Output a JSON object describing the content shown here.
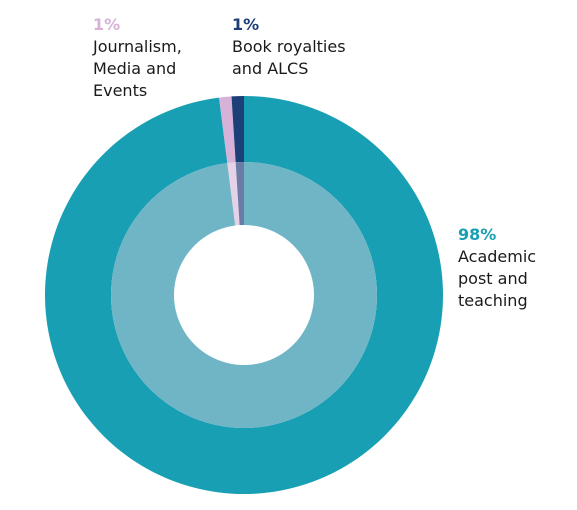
{
  "chart_data": {
    "type": "donut",
    "categories": [
      "Academic post and teaching",
      "Journalism, Media and Events",
      "Book royalties and ALCS"
    ],
    "values": [
      98,
      1,
      1
    ],
    "value_labels": [
      "98%",
      "1%",
      "1%"
    ],
    "colors": [
      "#189fb3",
      "#d7b2d8",
      "#1d3f78"
    ],
    "inner_colors": [
      "#6fb5c6",
      "#e5d2e7",
      "#6a7ca6"
    ]
  }
}
